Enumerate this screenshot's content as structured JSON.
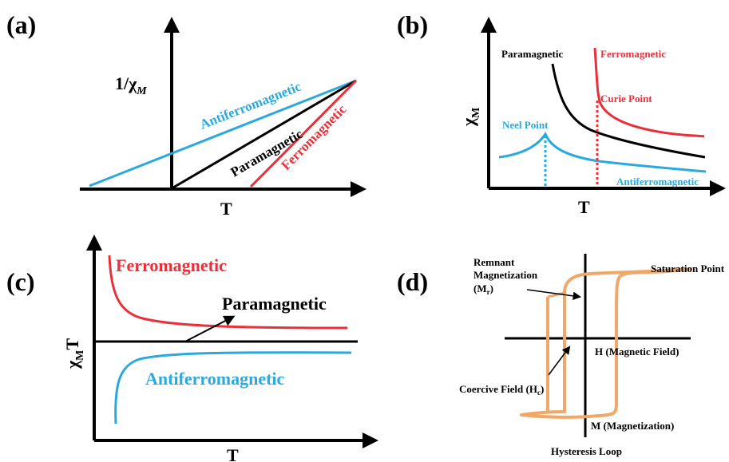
{
  "colors": {
    "black": "#000000",
    "cyan": "#2aa9df",
    "red": "#e8303a",
    "orange": "#f0a868"
  },
  "panel_a": {
    "tag": "(a)",
    "y_label_main": "1/χ",
    "y_label_sub": "M",
    "x_label": "T",
    "line_antiferro": "Antiferromagnetic",
    "line_para": "Paramagnetic",
    "line_ferro": "Ferromagnetic"
  },
  "panel_b": {
    "tag": "(b)",
    "y_label_main": "χ",
    "y_label_sub": "M",
    "x_label": "T",
    "curve_para": "Paramagnetic",
    "curve_ferro": "Ferromagnetic",
    "curve_antiferro": "Antiferromagnetic",
    "curie_point": "Curie Point",
    "neel_point": "Neel Point"
  },
  "panel_c": {
    "tag": "(c)",
    "y_label_main": "χ",
    "y_label_sub": "M",
    "y_label_tail": "T",
    "x_label": "T",
    "curve_ferro": "Ferromagnetic",
    "curve_para": "Paramagnetic",
    "curve_antiferro": "Antiferromagnetic"
  },
  "panel_d": {
    "tag": "(d)",
    "remnant_line1": "Remnant",
    "remnant_line2": "Magnetization",
    "remnant_line3_pre": "(M",
    "remnant_line3_sub": "r",
    "remnant_line3_post": ")",
    "saturation": "Saturation Point",
    "h_axis": "H (Magnetic Field)",
    "coercive_pre": "Coercive Field (H",
    "coercive_sub": "c",
    "coercive_post": ")",
    "m_axis": "M (Magnetization)",
    "caption": "Hysteresis Loop"
  }
}
